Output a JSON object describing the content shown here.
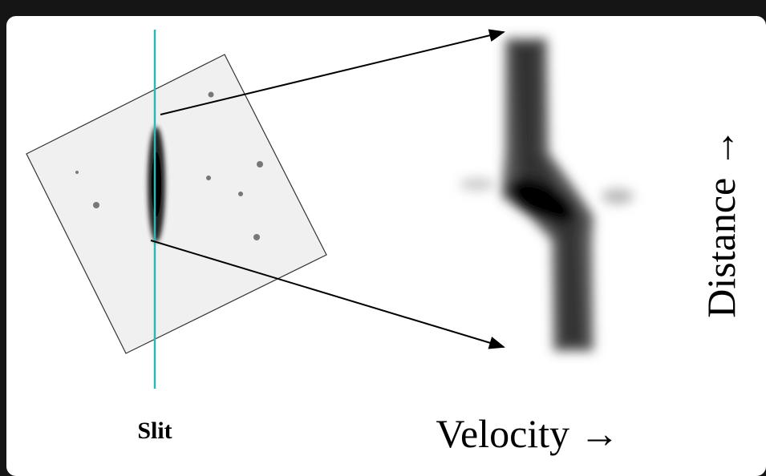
{
  "labels": {
    "slit": "Slit",
    "velocity": "Velocity →",
    "distance": "Distance →"
  }
}
